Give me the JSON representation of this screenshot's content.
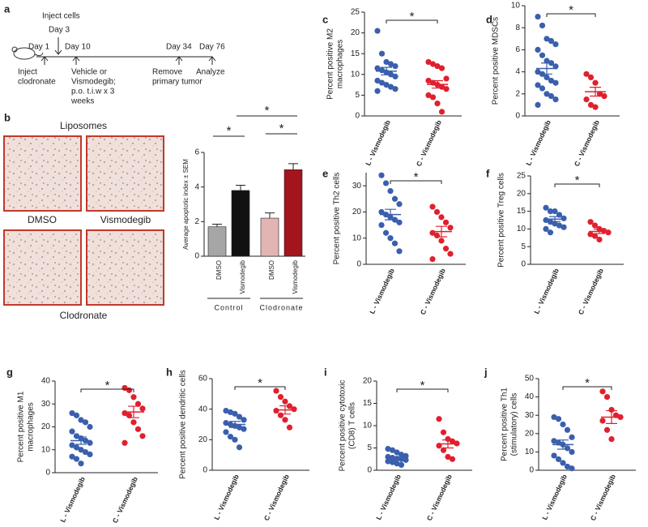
{
  "timeline": {
    "panel": "a",
    "day1": "Day 1",
    "inject_cells": "Inject cells",
    "day3": "Day 3",
    "day10": "Day 10",
    "day34": "Day 34",
    "day76": "Day 76",
    "clodronate": [
      "Inject",
      "clodronate"
    ],
    "vehicle": [
      "Vehicle or",
      "Vismodegib;",
      "p.o. t.i.w x 3",
      "weeks"
    ],
    "remove": [
      "Remove",
      "primary tumor"
    ],
    "analyze": "Analyze"
  },
  "images": {
    "panel": "b",
    "top": "Liposomes",
    "left": "DMSO",
    "right": "Vismodegib",
    "bottom": "Clodronate"
  },
  "chart_data": [
    {
      "type": "bar",
      "ylabel": "Average apoptotic index ± SEM",
      "categories": [
        "DMSO",
        "Vismodegib",
        "DMSO",
        "Vismodegib"
      ],
      "values": [
        1.7,
        3.8,
        2.2,
        5.0
      ],
      "errors": [
        0.15,
        0.3,
        0.3,
        0.35
      ],
      "colors": [
        "#a6a6a6",
        "#111111",
        "#e3b4b4",
        "#a3141c"
      ],
      "groups": [
        "Control",
        "Clodronate"
      ],
      "annotations": [
        "*",
        "*",
        "*"
      ],
      "ylim": [
        0,
        6
      ],
      "yticks": [
        0,
        2,
        4,
        6
      ]
    },
    {
      "type": "dot",
      "panel": "c",
      "ylabel": [
        "Percent positive M2",
        "macrophages"
      ],
      "categories": [
        "L - Vismodegib",
        "C - Vismodegib"
      ],
      "groups": [
        {
          "color": "#3a5fad",
          "values": [
            20.5,
            15,
            13,
            12.5,
            12,
            11.5,
            11,
            10.5,
            10,
            9.5,
            8.5,
            8,
            7.5,
            7,
            6.5,
            6
          ],
          "mean": 10.8,
          "sem": 0.9
        },
        {
          "color": "#e0202e",
          "values": [
            13,
            12.5,
            12,
            11.5,
            9,
            8.5,
            8,
            7.5,
            7,
            6.5,
            5,
            4.5,
            3,
            1
          ],
          "mean": 7.6,
          "sem": 0.9
        }
      ],
      "significance": "*",
      "ylim": [
        0,
        25
      ],
      "yticks": [
        0,
        5,
        10,
        15,
        20,
        25
      ]
    },
    {
      "type": "dot",
      "panel": "d",
      "ylabel": [
        "Percent positive MDSCs"
      ],
      "categories": [
        "L - Vismodegib",
        "C - Vismodegib"
      ],
      "groups": [
        {
          "color": "#3a5fad",
          "values": [
            9,
            8.2,
            7,
            6.8,
            6.5,
            6,
            5.5,
            5,
            4.8,
            4.5,
            4,
            3.8,
            3.5,
            3.2,
            3,
            2.8,
            2.5,
            2,
            1.8,
            1.5,
            1
          ],
          "mean": 4.3,
          "sem": 0.5
        },
        {
          "color": "#e0202e",
          "values": [
            3.8,
            3.5,
            3,
            2,
            1.8,
            1.5,
            1,
            0.8
          ],
          "mean": 2.2,
          "sem": 0.4
        }
      ],
      "significance": "*",
      "ylim": [
        0,
        10
      ],
      "yticks": [
        0,
        2,
        4,
        6,
        8,
        10
      ]
    },
    {
      "type": "dot",
      "panel": "e",
      "ylabel": [
        "Percent positive Th2 cells"
      ],
      "categories": [
        "L - Vismodegib",
        "C - Vismodegib"
      ],
      "groups": [
        {
          "color": "#3a5fad",
          "values": [
            34,
            31,
            28,
            25,
            23,
            20,
            19,
            18,
            17,
            16,
            15,
            12,
            10,
            8,
            5
          ],
          "mean": 19,
          "sem": 2
        },
        {
          "color": "#e0202e",
          "values": [
            22,
            20,
            18,
            16,
            14,
            12,
            11,
            9,
            6,
            4,
            2
          ],
          "mean": 12.5,
          "sem": 2
        }
      ],
      "significance": "*",
      "ylim": [
        0,
        35
      ],
      "yticks": [
        0,
        10,
        20,
        30
      ]
    },
    {
      "type": "dot",
      "panel": "f",
      "ylabel": [
        "Percent positive Treg cells"
      ],
      "categories": [
        "L - Vismodegib",
        "C - Vismodegib"
      ],
      "groups": [
        {
          "color": "#3a5fad",
          "values": [
            16,
            15,
            15,
            14,
            13,
            12.5,
            12,
            11.5,
            11,
            10.5,
            10,
            9
          ],
          "mean": 12.8,
          "sem": 0.7
        },
        {
          "color": "#e0202e",
          "values": [
            12,
            11,
            10,
            9.5,
            9,
            8.5,
            8,
            7
          ],
          "mean": 9.3,
          "sem": 0.6
        }
      ],
      "significance": "*",
      "ylim": [
        0,
        25
      ],
      "yticks": [
        0,
        5,
        10,
        15,
        20,
        25
      ]
    },
    {
      "type": "dot",
      "panel": "g",
      "ylabel": [
        "Percent positive M1",
        "macrophages"
      ],
      "categories": [
        "L - Vismodegib",
        "C - Vismodegib"
      ],
      "groups": [
        {
          "color": "#3a5fad",
          "values": [
            26,
            25,
            23,
            22,
            20,
            18,
            16,
            15,
            14,
            13,
            12,
            11,
            10,
            9,
            8,
            7,
            6,
            4
          ],
          "mean": 14,
          "sem": 1.6
        },
        {
          "color": "#e0202e",
          "values": [
            37,
            36,
            33,
            30,
            28,
            26,
            25,
            22,
            19,
            16,
            13
          ],
          "mean": 26.5,
          "sem": 2.5
        }
      ],
      "significance": "*",
      "ylim": [
        0,
        40
      ],
      "yticks": [
        0,
        10,
        20,
        30,
        40
      ]
    },
    {
      "type": "dot",
      "panel": "h",
      "ylabel": [
        "Percent positive dendritic cells"
      ],
      "categories": [
        "L - Vismodegib",
        "C - Vismodegib"
      ],
      "groups": [
        {
          "color": "#3a5fad",
          "values": [
            39,
            38,
            37,
            35,
            33,
            31,
            30,
            29,
            28,
            27,
            25,
            22,
            20,
            15
          ],
          "mean": 30,
          "sem": 2
        },
        {
          "color": "#e0202e",
          "values": [
            52,
            48,
            45,
            42,
            40,
            39,
            36,
            33,
            28
          ],
          "mean": 39.5,
          "sem": 2.7
        }
      ],
      "significance": "*",
      "ylim": [
        0,
        60
      ],
      "yticks": [
        0,
        20,
        40,
        60
      ]
    },
    {
      "type": "dot",
      "panel": "i",
      "ylabel": [
        "Percent positive cytotoxic",
        "(CD8) T cells"
      ],
      "categories": [
        "L - Vismodegib",
        "C - Vismodegib"
      ],
      "groups": [
        {
          "color": "#3a5fad",
          "values": [
            4.8,
            4.5,
            4,
            3.5,
            3.2,
            3,
            2.8,
            2.6,
            2.5,
            2.3,
            2,
            1.8,
            1.5,
            1.2
          ],
          "mean": 2.6,
          "sem": 0.3
        },
        {
          "color": "#e0202e",
          "values": [
            11.5,
            8.5,
            7,
            6.5,
            6,
            5.5,
            4.5,
            3,
            2.5
          ],
          "mean": 5.9,
          "sem": 0.9
        }
      ],
      "significance": "*",
      "ylim": [
        0,
        20
      ],
      "yticks": [
        0,
        5,
        10,
        15,
        20
      ]
    },
    {
      "type": "dot",
      "panel": "j",
      "ylabel": [
        "Percent positive Th1",
        "(stimulatory) cells"
      ],
      "categories": [
        "L - Vismodegib",
        "C - Vismodegib"
      ],
      "groups": [
        {
          "color": "#3a5fad",
          "values": [
            29,
            28,
            25,
            22,
            18,
            16,
            15,
            14,
            12,
            10,
            8,
            6,
            4,
            2,
            1
          ],
          "mean": 14,
          "sem": 2.5
        },
        {
          "color": "#e0202e",
          "values": [
            43,
            40,
            33,
            30,
            29,
            27,
            22,
            17
          ],
          "mean": 29,
          "sem": 3.5
        }
      ],
      "significance": "*",
      "ylim": [
        0,
        50
      ],
      "yticks": [
        0,
        10,
        20,
        30,
        40,
        50
      ]
    }
  ]
}
